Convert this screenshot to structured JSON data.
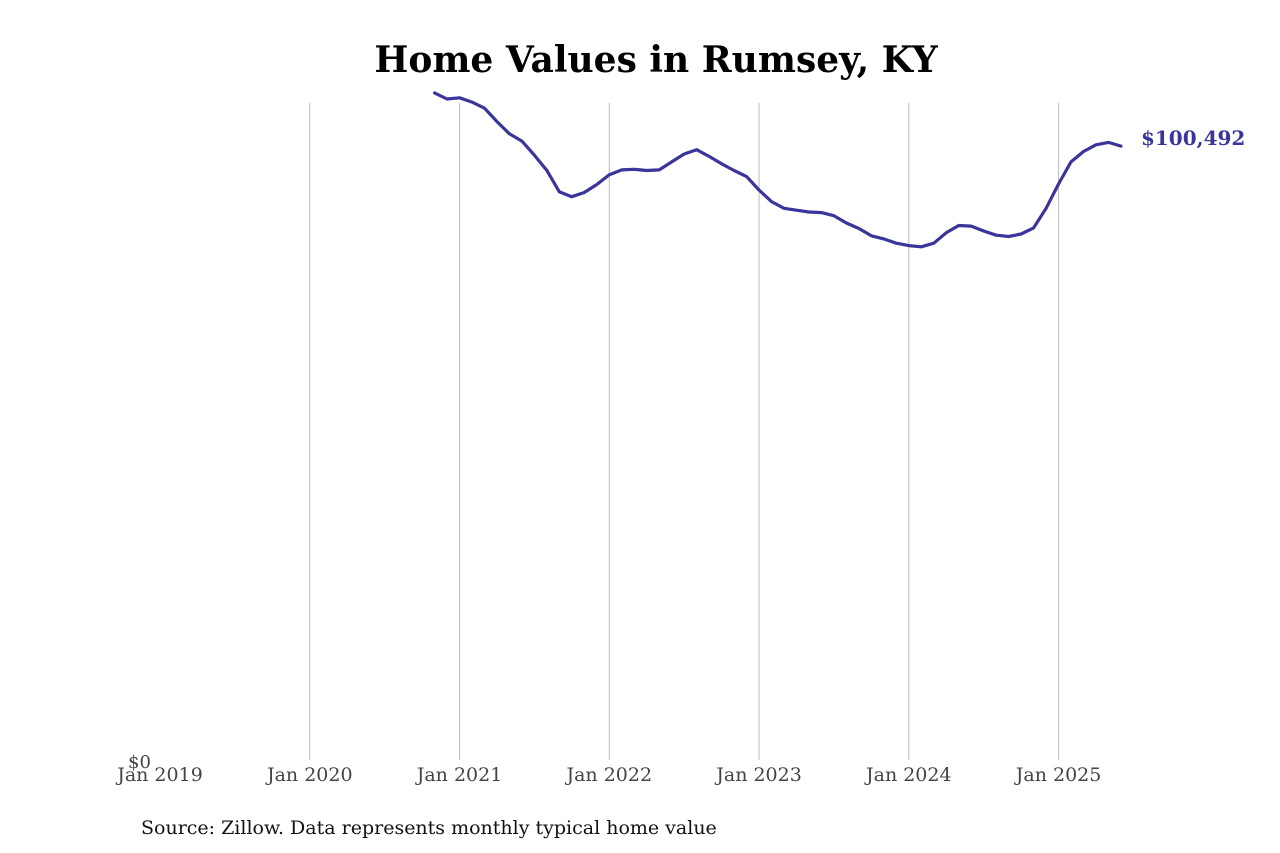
{
  "chart_data": {
    "type": "line",
    "title": "Home Values in Rumsey, KY",
    "xlabel": "",
    "ylabel": "",
    "y_tick_labels": [
      "$0"
    ],
    "x_ticks": [
      "Jan 2019",
      "Jan 2020",
      "Jan 2021",
      "Jan 2022",
      "Jan 2023",
      "Jan 2024",
      "Jan 2025"
    ],
    "x_range": [
      "2019-01",
      "2025-07"
    ],
    "ylim": [
      0,
      110000
    ],
    "grid": "vertical",
    "line_color": "#39359a",
    "end_label": "$100,492",
    "source": "Source: Zillow. Data represents monthly typical home value",
    "series": [
      {
        "x": [
          "2020-11",
          "2020-12",
          "2021-01",
          "2021-02",
          "2021-03",
          "2021-04",
          "2021-05",
          "2021-06",
          "2021-07",
          "2021-08",
          "2021-09",
          "2021-10",
          "2021-11",
          "2021-12",
          "2022-01",
          "2022-02",
          "2022-03",
          "2022-04",
          "2022-05",
          "2022-06",
          "2022-07",
          "2022-08",
          "2022-09",
          "2022-10",
          "2022-11",
          "2022-12",
          "2023-01",
          "2023-02",
          "2023-03",
          "2023-04",
          "2023-05",
          "2023-06",
          "2023-07",
          "2023-08",
          "2023-09",
          "2023-10",
          "2023-11",
          "2023-12",
          "2024-01",
          "2024-02",
          "2024-03",
          "2024-04",
          "2024-05",
          "2024-06",
          "2024-07",
          "2024-08",
          "2024-09",
          "2024-10",
          "2024-11",
          "2024-12",
          "2025-01",
          "2025-02",
          "2025-03",
          "2025-04",
          "2025-05",
          "2025-06"
        ],
        "values": [
          109200,
          108200,
          108400,
          107700,
          106700,
          104500,
          102500,
          101300,
          99000,
          96500,
          93000,
          92200,
          92900,
          94200,
          95800,
          96600,
          96700,
          96500,
          96600,
          97900,
          99200,
          99900,
          98800,
          97600,
          96500,
          95500,
          93300,
          91400,
          90300,
          90000,
          89700,
          89600,
          89100,
          87900,
          87000,
          85800,
          85300,
          84600,
          84200,
          84000,
          84600,
          86300,
          87500,
          87400,
          86600,
          85900,
          85700,
          86100,
          87100,
          90300,
          94300,
          97900,
          99600,
          100700,
          101100,
          100492
        ]
      }
    ]
  }
}
